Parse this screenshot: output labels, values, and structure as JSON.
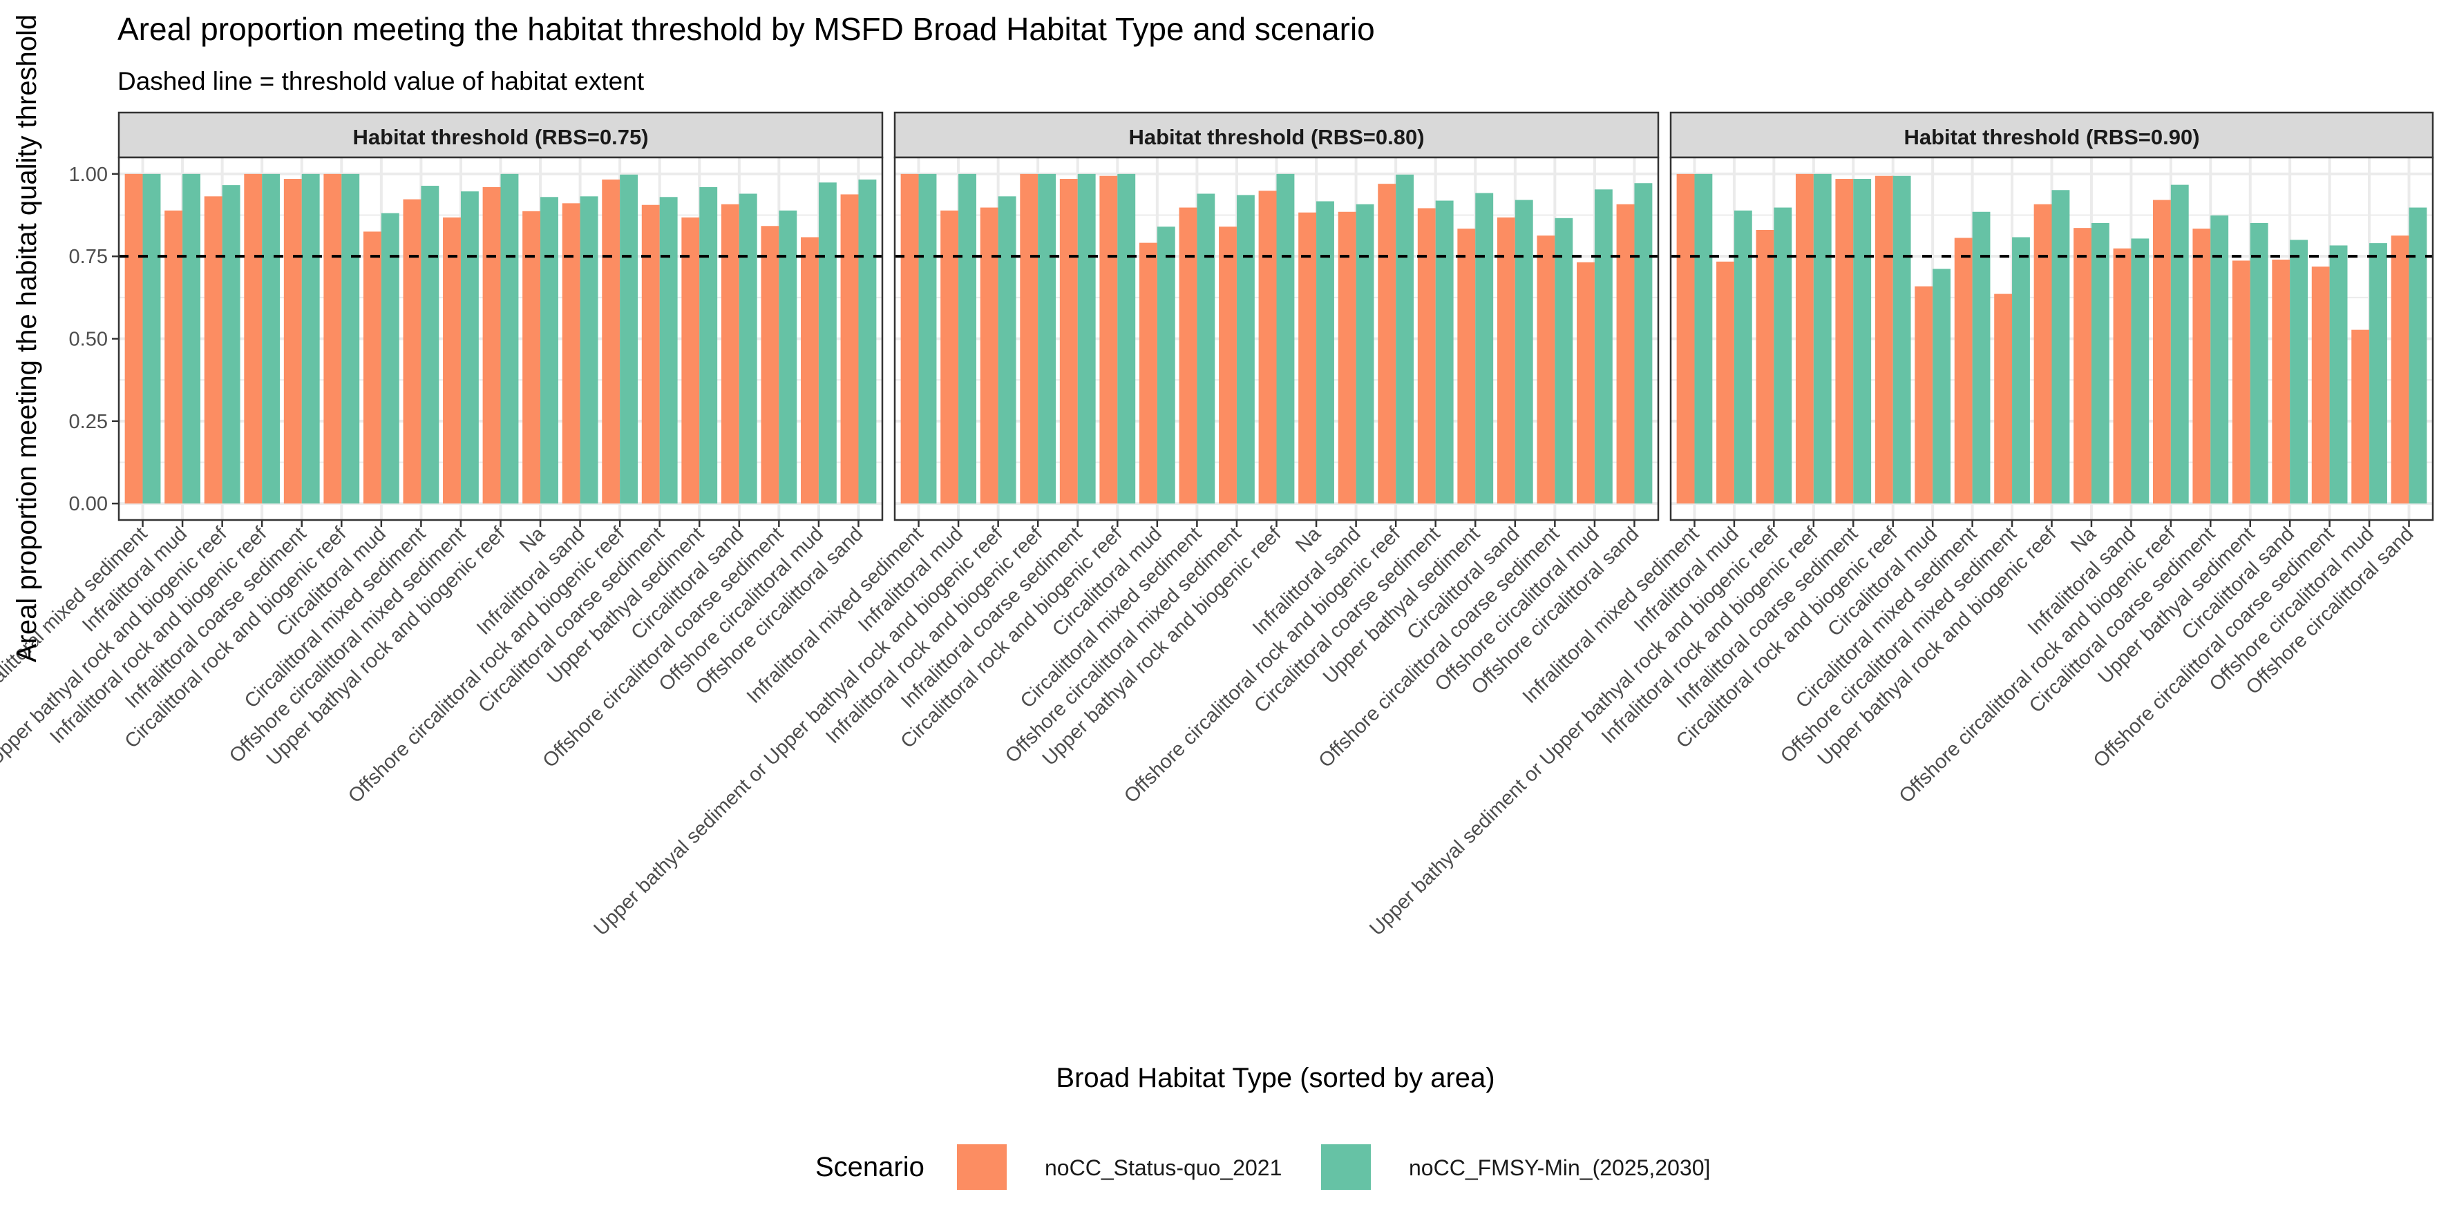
{
  "chart_data": {
    "type": "bar",
    "title": "Areal proportion meeting the habitat threshold by MSFD Broad Habitat Type and scenario",
    "subtitle": "Dashed line = threshold value of habitat extent",
    "xlabel": "Broad Habitat Type (sorted by area)",
    "ylabel": "Areal proportion meeting the habitat quality threshold",
    "ylim": [
      0,
      1
    ],
    "yticks": [
      "0.00",
      "0.25",
      "0.50",
      "0.75",
      "1.00"
    ],
    "threshold_line": 0.75,
    "grid": true,
    "legend": {
      "title": "Scenario",
      "position": "bottom",
      "entries": [
        {
          "name": "noCC_Status-quo_2021",
          "color": "#FC8D62"
        },
        {
          "name": "noCC_FMSY-Min_(2025,2030]",
          "color": "#66C2A5"
        }
      ]
    },
    "categories": [
      "Infralittoral mixed sediment",
      "Infralittoral mud",
      "Upper bathyal sediment or Upper bathyal rock and biogenic reef",
      "Infralittoral rock and biogenic reef",
      "Infralittoral coarse sediment",
      "Circalittoral rock and biogenic reef",
      "Circalittoral mud",
      "Circalittoral mixed sediment",
      "Offshore circalittoral mixed sediment",
      "Upper bathyal rock and biogenic reef",
      "Na",
      "Infralittoral sand",
      "Offshore circalittoral rock and biogenic reef",
      "Circalittoral coarse sediment",
      "Upper bathyal sediment",
      "Circalittoral sand",
      "Offshore circalittoral coarse sediment",
      "Offshore circalittoral mud",
      "Offshore circalittoral sand"
    ],
    "facets": [
      {
        "label": "Habitat threshold (RBS=0.75)",
        "series": [
          {
            "name": "noCC_Status-quo_2021",
            "values": [
              1.0,
              0.889,
              0.932,
              1.0,
              0.985,
              1.0,
              0.825,
              0.923,
              0.868,
              0.96,
              0.887,
              0.911,
              0.983,
              0.906,
              0.868,
              0.908,
              0.842,
              0.808,
              0.938
            ]
          },
          {
            "name": "noCC_FMSY-Min_(2025,2030]",
            "values": [
              1.0,
              1.0,
              0.966,
              1.0,
              1.0,
              1.0,
              0.881,
              0.964,
              0.947,
              1.0,
              0.93,
              0.932,
              0.998,
              0.93,
              0.96,
              0.94,
              0.889,
              0.974,
              0.983
            ]
          }
        ]
      },
      {
        "label": "Habitat threshold (RBS=0.80)",
        "series": [
          {
            "name": "noCC_Status-quo_2021",
            "values": [
              1.0,
              0.889,
              0.898,
              1.0,
              0.985,
              0.994,
              0.791,
              0.898,
              0.84,
              0.949,
              0.883,
              0.885,
              0.97,
              0.896,
              0.834,
              0.868,
              0.813,
              0.732,
              0.908
            ]
          },
          {
            "name": "noCC_FMSY-Min_(2025,2030]",
            "values": [
              1.0,
              1.0,
              0.932,
              1.0,
              1.0,
              1.0,
              0.84,
              0.94,
              0.936,
              1.0,
              0.917,
              0.908,
              0.998,
              0.919,
              0.942,
              0.921,
              0.866,
              0.953,
              0.972
            ]
          }
        ]
      },
      {
        "label": "Habitat threshold (RBS=0.90)",
        "series": [
          {
            "name": "noCC_Status-quo_2021",
            "values": [
              1.0,
              0.734,
              0.83,
              1.0,
              0.985,
              0.994,
              0.659,
              0.806,
              0.636,
              0.908,
              0.836,
              0.774,
              0.921,
              0.834,
              0.737,
              0.74,
              0.719,
              0.527,
              0.813
            ]
          },
          {
            "name": "noCC_FMSY-Min_(2025,2030]",
            "values": [
              1.0,
              0.889,
              0.898,
              1.0,
              0.985,
              0.994,
              0.712,
              0.885,
              0.808,
              0.951,
              0.851,
              0.804,
              0.967,
              0.874,
              0.851,
              0.8,
              0.783,
              0.79,
              0.898
            ]
          }
        ]
      }
    ]
  }
}
